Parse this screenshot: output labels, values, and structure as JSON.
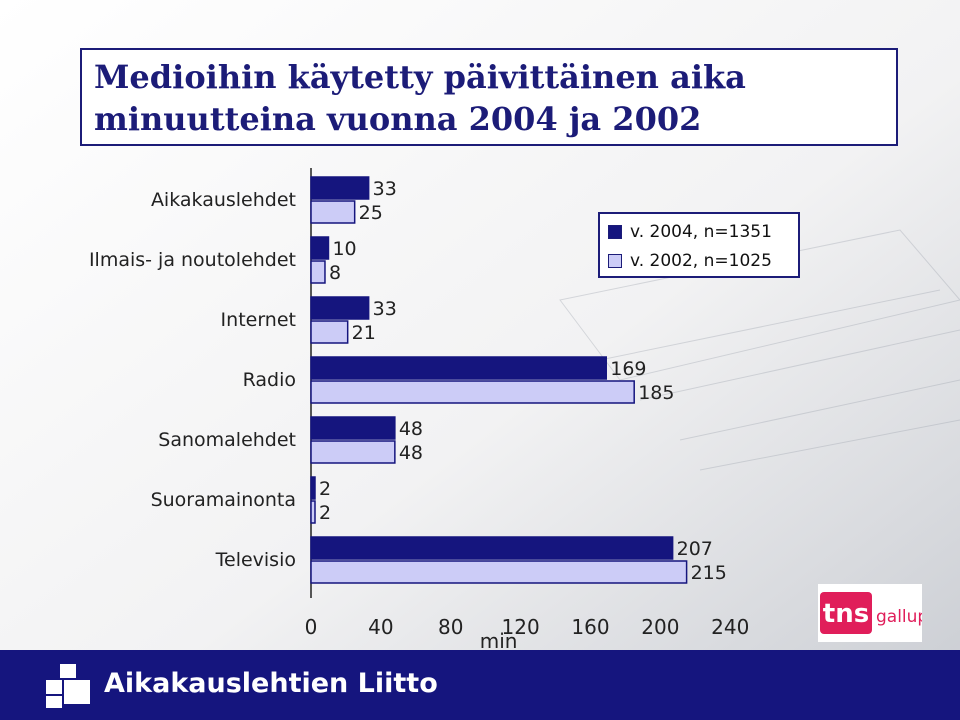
{
  "colors": {
    "dark_series": "#15157e",
    "light_series": "#ccccf7",
    "title": "#1c1c78",
    "footer": "#15157e",
    "tns_logo": "#e01e5a"
  },
  "chart_data": {
    "type": "bar",
    "orientation": "horizontal",
    "title": "Medioihin käytetty päivittäinen aika minuutteina vuonna 2004 ja 2002",
    "title_lines": [
      "Medioihin käytetty päivittäinen aika",
      "minuutteina vuonna 2004 ja 2002"
    ],
    "categories": [
      "Aikakauslehdet",
      "Ilmais- ja noutolehdet",
      "Internet",
      "Radio",
      "Sanomalehdet",
      "Suoramainonta",
      "Televisio"
    ],
    "series": [
      {
        "name": "v. 2004, n=1351",
        "values": [
          33,
          10,
          33,
          169,
          48,
          2,
          207
        ]
      },
      {
        "name": "v. 2002, n=1025",
        "values": [
          25,
          8,
          21,
          185,
          48,
          2,
          215
        ]
      }
    ],
    "xlabel": "min",
    "xlim": [
      0,
      240
    ],
    "xticks": [
      0,
      40,
      80,
      120,
      160,
      200,
      240
    ],
    "grid": false,
    "legend_position": "top-right"
  },
  "footer": {
    "org_name": "Aikakauslehtien Liitto",
    "logo_icon": "aikakauslehtien-liitto-logo-icon"
  },
  "partner_logo": {
    "text_main": "tns",
    "text_sub": "gallup"
  }
}
